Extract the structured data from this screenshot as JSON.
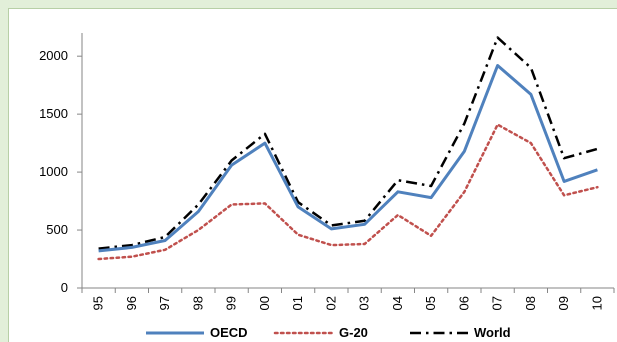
{
  "chart_data": {
    "type": "line",
    "x": [
      "95",
      "96",
      "97",
      "98",
      "99",
      "00",
      "01",
      "02",
      "03",
      "04",
      "05",
      "06",
      "07",
      "08",
      "09",
      "10"
    ],
    "ylim": [
      0,
      2200
    ],
    "yticks": [
      0,
      500,
      1000,
      1500,
      2000
    ],
    "grid": false,
    "legend_position": "bottom",
    "series": [
      {
        "name": "OECD",
        "color": "#4f81bd",
        "style": "solid",
        "values": [
          320,
          350,
          410,
          660,
          1060,
          1250,
          700,
          510,
          550,
          830,
          780,
          1180,
          1920,
          1670,
          920,
          1020
        ]
      },
      {
        "name": "G-20",
        "color": "#c0504d",
        "style": "dotted",
        "values": [
          250,
          270,
          330,
          500,
          720,
          730,
          460,
          370,
          380,
          630,
          450,
          830,
          1410,
          1250,
          800,
          870
        ]
      },
      {
        "name": "World",
        "color": "#000000",
        "style": "dashdot",
        "values": [
          340,
          370,
          440,
          720,
          1100,
          1330,
          740,
          540,
          580,
          930,
          880,
          1420,
          2160,
          1900,
          1120,
          1200
        ]
      }
    ]
  }
}
